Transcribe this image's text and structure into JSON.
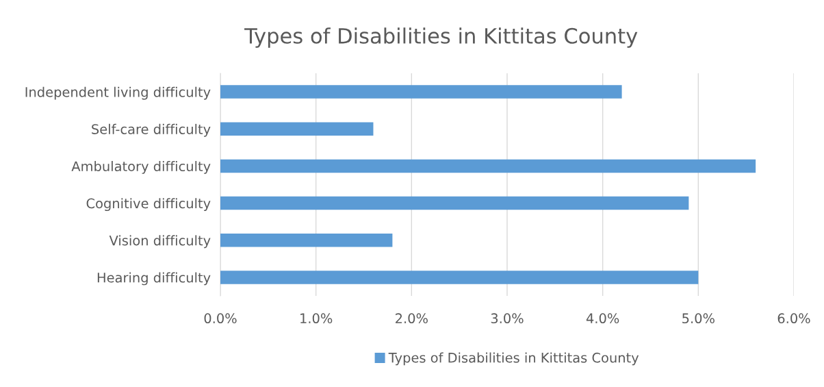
{
  "chart_data": {
    "type": "bar",
    "orientation": "horizontal",
    "title": "Types of Disabilities in Kittitas County",
    "categories": [
      "Independent living difficulty",
      "Self-care difficulty",
      "Ambulatory difficulty",
      "Cognitive difficulty",
      "Vision difficulty",
      "Hearing difficulty"
    ],
    "series": [
      {
        "name": "Types of Disabilities in Kittitas County",
        "color": "#5b9bd5",
        "values": [
          4.2,
          1.6,
          5.6,
          4.9,
          1.8,
          5.0
        ]
      }
    ],
    "xlim": [
      0,
      6
    ],
    "xticks": [
      {
        "value": 0,
        "label": "0.0%"
      },
      {
        "value": 1,
        "label": "1.0%"
      },
      {
        "value": 2,
        "label": "2.0%"
      },
      {
        "value": 3,
        "label": "3.0%"
      },
      {
        "value": 4,
        "label": "4.0%"
      },
      {
        "value": 5,
        "label": "5.0%"
      },
      {
        "value": 6,
        "label": "6.0%"
      }
    ],
    "grid": "x",
    "legend": "bottom"
  }
}
